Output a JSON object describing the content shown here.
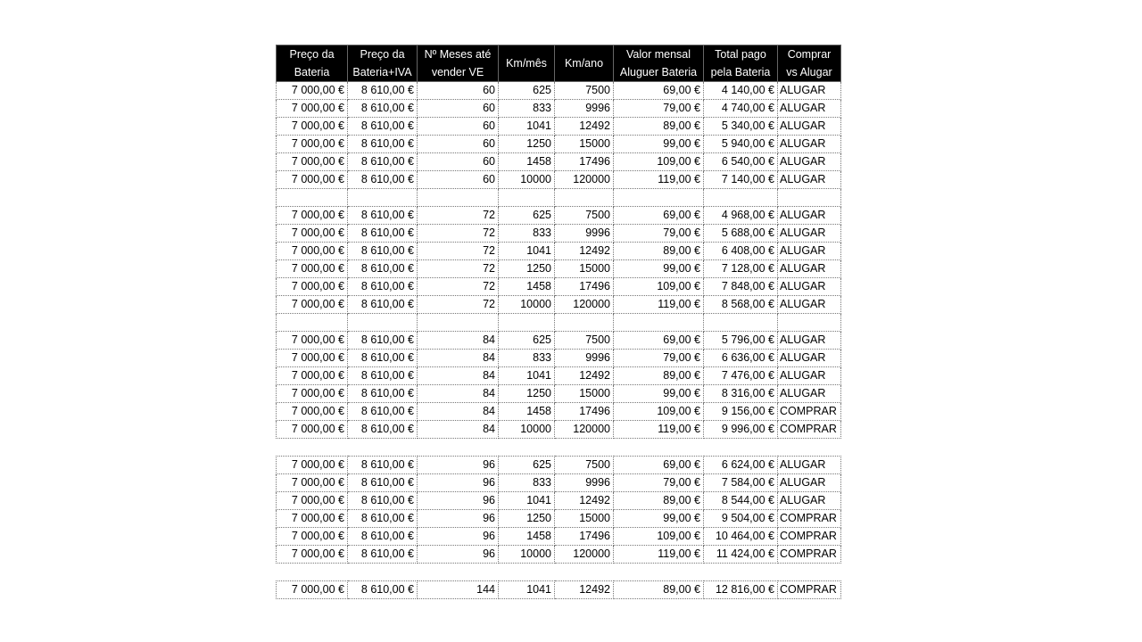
{
  "table": {
    "header": [
      [
        "Preço da",
        "Bateria"
      ],
      [
        "Preço da",
        "Bateria+IVA"
      ],
      [
        "Nº Meses até",
        "vender VE"
      ],
      [
        "Km/mês"
      ],
      [
        "Km/ano"
      ],
      [
        "Valor mensal",
        "Aluguer Bateria"
      ],
      [
        "Total pago",
        "pela Bateria"
      ],
      [
        "Comprar",
        "vs Alugar"
      ]
    ],
    "groups": [
      [
        [
          "7 000,00 €",
          "8 610,00 €",
          "60",
          "625",
          "7500",
          "69,00 €",
          "4 140,00 €",
          "ALUGAR"
        ],
        [
          "7 000,00 €",
          "8 610,00 €",
          "60",
          "833",
          "9996",
          "79,00 €",
          "4 740,00 €",
          "ALUGAR"
        ],
        [
          "7 000,00 €",
          "8 610,00 €",
          "60",
          "1041",
          "12492",
          "89,00 €",
          "5 340,00 €",
          "ALUGAR"
        ],
        [
          "7 000,00 €",
          "8 610,00 €",
          "60",
          "1250",
          "15000",
          "99,00 €",
          "5 940,00 €",
          "ALUGAR"
        ],
        [
          "7 000,00 €",
          "8 610,00 €",
          "60",
          "1458",
          "17496",
          "109,00 €",
          "6 540,00 €",
          "ALUGAR"
        ],
        [
          "7 000,00 €",
          "8 610,00 €",
          "60",
          "10000",
          "120000",
          "119,00 €",
          "7 140,00 €",
          "ALUGAR"
        ]
      ],
      [
        [
          "7 000,00 €",
          "8 610,00 €",
          "72",
          "625",
          "7500",
          "69,00 €",
          "4 968,00 €",
          "ALUGAR"
        ],
        [
          "7 000,00 €",
          "8 610,00 €",
          "72",
          "833",
          "9996",
          "79,00 €",
          "5 688,00 €",
          "ALUGAR"
        ],
        [
          "7 000,00 €",
          "8 610,00 €",
          "72",
          "1041",
          "12492",
          "89,00 €",
          "6 408,00 €",
          "ALUGAR"
        ],
        [
          "7 000,00 €",
          "8 610,00 €",
          "72",
          "1250",
          "15000",
          "99,00 €",
          "7 128,00 €",
          "ALUGAR"
        ],
        [
          "7 000,00 €",
          "8 610,00 €",
          "72",
          "1458",
          "17496",
          "109,00 €",
          "7 848,00 €",
          "ALUGAR"
        ],
        [
          "7 000,00 €",
          "8 610,00 €",
          "72",
          "10000",
          "120000",
          "119,00 €",
          "8 568,00 €",
          "ALUGAR"
        ]
      ],
      [
        [
          "7 000,00 €",
          "8 610,00 €",
          "84",
          "625",
          "7500",
          "69,00 €",
          "5 796,00 €",
          "ALUGAR"
        ],
        [
          "7 000,00 €",
          "8 610,00 €",
          "84",
          "833",
          "9996",
          "79,00 €",
          "6 636,00 €",
          "ALUGAR"
        ],
        [
          "7 000,00 €",
          "8 610,00 €",
          "84",
          "1041",
          "12492",
          "89,00 €",
          "7 476,00 €",
          "ALUGAR"
        ],
        [
          "7 000,00 €",
          "8 610,00 €",
          "84",
          "1250",
          "15000",
          "99,00 €",
          "8 316,00 €",
          "ALUGAR"
        ],
        [
          "7 000,00 €",
          "8 610,00 €",
          "84",
          "1458",
          "17496",
          "109,00 €",
          "9 156,00 €",
          "COMPRAR"
        ],
        [
          "7 000,00 €",
          "8 610,00 €",
          "84",
          "10000",
          "120000",
          "119,00 €",
          "9 996,00 €",
          "COMPRAR"
        ]
      ],
      [
        [
          "7 000,00 €",
          "8 610,00 €",
          "96",
          "625",
          "7500",
          "69,00 €",
          "6 624,00 €",
          "ALUGAR"
        ],
        [
          "7 000,00 €",
          "8 610,00 €",
          "96",
          "833",
          "9996",
          "79,00 €",
          "7 584,00 €",
          "ALUGAR"
        ],
        [
          "7 000,00 €",
          "8 610,00 €",
          "96",
          "1041",
          "12492",
          "89,00 €",
          "8 544,00 €",
          "ALUGAR"
        ],
        [
          "7 000,00 €",
          "8 610,00 €",
          "96",
          "1250",
          "15000",
          "99,00 €",
          "9 504,00 €",
          "COMPRAR"
        ],
        [
          "7 000,00 €",
          "8 610,00 €",
          "96",
          "1458",
          "17496",
          "109,00 €",
          "10 464,00 €",
          "COMPRAR"
        ],
        [
          "7 000,00 €",
          "8 610,00 €",
          "96",
          "10000",
          "120000",
          "119,00 €",
          "11 424,00 €",
          "COMPRAR"
        ]
      ],
      [
        [
          "7 000,00 €",
          "8 610,00 €",
          "144",
          "1041",
          "12492",
          "89,00 €",
          "12 816,00 €",
          "COMPRAR"
        ]
      ]
    ]
  }
}
